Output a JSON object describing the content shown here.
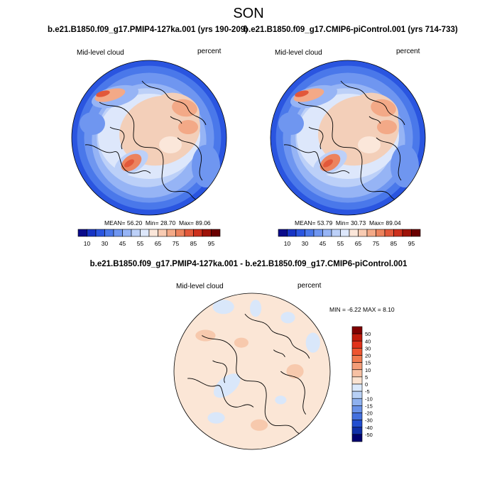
{
  "figure": {
    "season_title": "SON"
  },
  "panels": [
    {
      "id": "pmip4",
      "title": "b.e21.B1850.f09_g17.PMIP4-127ka.001 (yrs 190-209)",
      "variable_label": "Mid-level cloud",
      "units_label": "percent",
      "stats": {
        "mean_label": "MEAN=",
        "mean": "56.20",
        "min_label": "Min=",
        "min": "28.70",
        "max_label": "Max=",
        "max": "89.06"
      }
    },
    {
      "id": "picontrol",
      "title": "b.e21.B1850.f09_g17.CMIP6-piControl.001 (yrs 714-733)",
      "variable_label": "Mid-level cloud",
      "units_label": "percent",
      "stats": {
        "mean_label": "MEAN=",
        "mean": "53.79",
        "min_label": "Min=",
        "min": "30.73",
        "max_label": "Max=",
        "max": "89.04"
      }
    },
    {
      "id": "difference",
      "title": "b.e21.B1850.f09_g17.PMIP4-127ka.001 - b.e21.B1850.f09_g17.CMIP6-piControl.001",
      "variable_label": "Mid-level cloud",
      "units_label": "percent",
      "stats_text": "MIN =  -6.22 MAX =   8.10"
    }
  ],
  "colorbar_horizontal": {
    "tick_labels": [
      "10",
      "30",
      "45",
      "55",
      "65",
      "75",
      "85",
      "95"
    ],
    "colors": [
      "#0a0a8a",
      "#1633c4",
      "#2a55e0",
      "#4a78ea",
      "#6f96f0",
      "#96b4f5",
      "#bcd0f8",
      "#dde7fb",
      "#fbe6d9",
      "#f8cbb2",
      "#f3a987",
      "#ec835d",
      "#e2583a",
      "#cc2f1c",
      "#9e1208",
      "#6a0000"
    ]
  },
  "colorbar_vertical": {
    "tick_labels": [
      "50",
      "40",
      "30",
      "20",
      "15",
      "10",
      "5",
      "0",
      "-5",
      "-10",
      "-15",
      "-20",
      "-30",
      "-40",
      "-50"
    ],
    "colors": [
      "#800000",
      "#c01a0a",
      "#e0321a",
      "#ed5530",
      "#f07a4f",
      "#f39d78",
      "#f7c1a4",
      "#fbe3d1",
      "#dbe9fb",
      "#b8d0f5",
      "#8fb1ef",
      "#6a92e8",
      "#4470de",
      "#224ed0",
      "#0f2fa8",
      "#000070"
    ]
  },
  "map_colors": {
    "clim_base": "#f3cfb9",
    "clim_light": "#fbe7da",
    "clim_paleblue": "#dde7fb",
    "clim_blue1": "#bcd0f8",
    "clim_blue2": "#96b4f5",
    "clim_blue3": "#6f96f0",
    "clim_blue4": "#4a78ea",
    "clim_blue5": "#2a55e0",
    "clim_red1": "#f3a987",
    "clim_red2": "#ec835d",
    "clim_red3": "#e2583a",
    "diff_base": "#fbe6d6",
    "diff_pos": "#f7c9ad",
    "diff_neg": "#d9e7fa",
    "coast": "#000000"
  }
}
